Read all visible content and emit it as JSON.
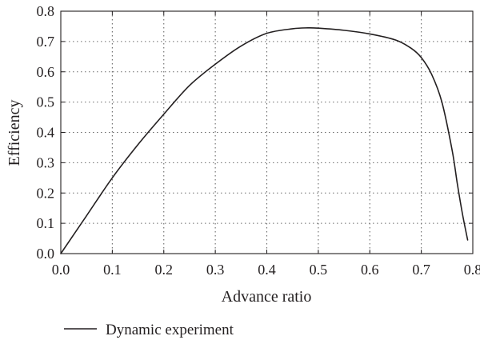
{
  "chart_data": {
    "type": "line",
    "xlabel": "Advance ratio",
    "ylabel": "Efficiency",
    "xlim": [
      0,
      0.8
    ],
    "ylim": [
      0,
      0.8
    ],
    "xticks": [
      "0.0",
      "0.1",
      "0.2",
      "0.3",
      "0.4",
      "0.5",
      "0.6",
      "0.7",
      "0.8"
    ],
    "yticks": [
      "0.0",
      "0.1",
      "0.2",
      "0.3",
      "0.4",
      "0.5",
      "0.6",
      "0.7",
      "0.8"
    ],
    "grid": true,
    "legend_position": "bottom",
    "series": [
      {
        "name": "Dynamic experiment",
        "color": "#231f20",
        "x": [
          0.0,
          0.05,
          0.1,
          0.15,
          0.2,
          0.25,
          0.3,
          0.35,
          0.4,
          0.45,
          0.48,
          0.5,
          0.55,
          0.6,
          0.65,
          0.68,
          0.7,
          0.72,
          0.74,
          0.76,
          0.77,
          0.78,
          0.79
        ],
        "y": [
          0.0,
          0.125,
          0.25,
          0.36,
          0.46,
          0.555,
          0.625,
          0.685,
          0.727,
          0.742,
          0.745,
          0.744,
          0.737,
          0.725,
          0.705,
          0.678,
          0.647,
          0.592,
          0.5,
          0.34,
          0.23,
          0.13,
          0.045
        ]
      }
    ]
  }
}
